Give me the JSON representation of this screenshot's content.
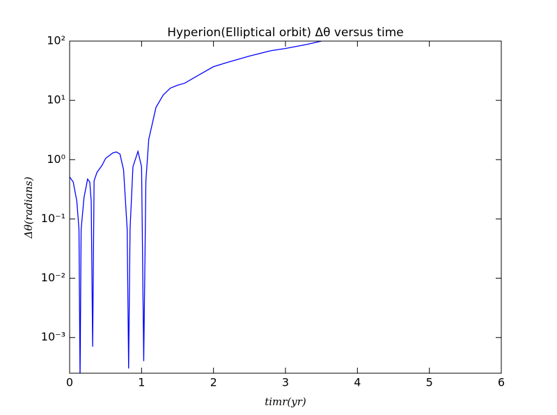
{
  "chart_data": {
    "type": "line",
    "title": "Hyperion(Elliptical orbit) Δθ versus time",
    "xlabel": "timr(yr)",
    "ylabel": "Δθ(radians)",
    "log_y": true,
    "xlim": [
      0,
      6
    ],
    "ylim": [
      0.00025,
      100
    ],
    "xticks": [
      0,
      1,
      2,
      3,
      4,
      5,
      6
    ],
    "yticks": [
      {
        "value": 0.001,
        "label": "10⁻³"
      },
      {
        "value": 0.01,
        "label": "10⁻²"
      },
      {
        "value": 0.1,
        "label": "10⁻¹"
      },
      {
        "value": 1,
        "label": "10⁰"
      },
      {
        "value": 10,
        "label": "10¹"
      },
      {
        "value": 100,
        "label": "10²"
      }
    ],
    "series": [
      {
        "color": "#0000ff",
        "x": [
          0,
          0.05,
          0.1,
          0.13,
          0.145,
          0.16,
          0.2,
          0.25,
          0.28,
          0.3,
          0.32,
          0.34,
          0.38,
          0.45,
          0.5,
          0.6,
          0.65,
          0.7,
          0.75,
          0.8,
          0.82,
          0.84,
          0.88,
          0.95,
          1.0,
          1.03,
          1.06,
          1.1,
          1.2,
          1.3,
          1.4,
          1.5,
          1.6,
          1.8,
          2.0,
          2.2,
          2.5,
          2.8,
          3.0,
          3.3,
          3.5,
          3.6
        ],
        "values": [
          0.51,
          0.42,
          0.2,
          0.067,
          0.0002,
          0.067,
          0.23,
          0.47,
          0.42,
          0.2,
          0.0007,
          0.44,
          0.61,
          0.8,
          1.05,
          1.3,
          1.35,
          1.24,
          0.67,
          0.067,
          0.0003,
          0.067,
          0.76,
          1.38,
          0.76,
          0.0004,
          0.44,
          2.2,
          7.6,
          12.3,
          16.1,
          18,
          19.5,
          27,
          37,
          44,
          56,
          69,
          75,
          88,
          100,
          104
        ]
      }
    ]
  }
}
